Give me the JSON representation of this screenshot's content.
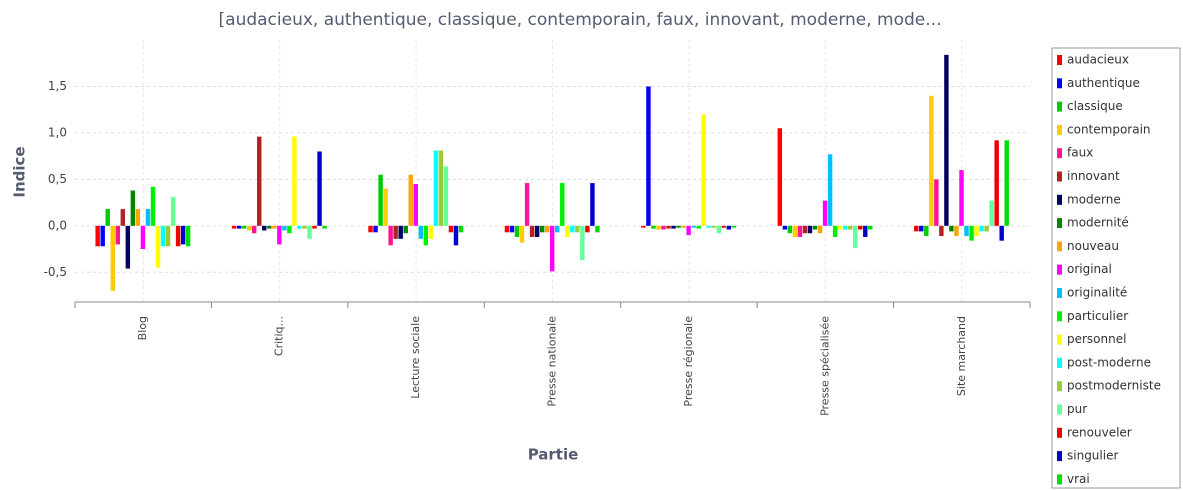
{
  "chart_data": {
    "type": "bar",
    "title": "[audacieux, authentique, classique, contemporain, faux, innovant, moderne, mode...",
    "x_label": "Partie",
    "y_label": "Indice",
    "categories": [
      "Blog",
      "Critiq...",
      "Lecture sociale",
      "Presse nationale",
      "Presse régionale",
      "Presse spécialisée",
      "Site marchand"
    ],
    "ylim": [
      -0.82,
      2.0
    ],
    "yticks": [
      {
        "value": -0.5,
        "label": "-0,5"
      },
      {
        "value": 0,
        "label": "0,0"
      },
      {
        "value": 0.5,
        "label": "0,5"
      },
      {
        "value": 1,
        "label": "1,0"
      },
      {
        "value": 1.5,
        "label": "1,5"
      }
    ],
    "grid": true,
    "legend": "right",
    "series": [
      {
        "name": "audacieux",
        "color": "#ff0000",
        "values": [
          -0.22,
          -0.03,
          -0.07,
          -0.07,
          -0.02,
          1.05,
          -0.06
        ]
      },
      {
        "name": "authentique",
        "color": "#0000ff",
        "values": [
          -0.22,
          -0.03,
          -0.07,
          -0.07,
          1.5,
          -0.04,
          -0.06
        ]
      },
      {
        "name": "classique",
        "color": "#00cc00",
        "values": [
          0.18,
          -0.03,
          0.55,
          -0.12,
          -0.03,
          -0.08,
          -0.11
        ]
      },
      {
        "name": "contemporain",
        "color": "#ffcc00",
        "values": [
          -0.7,
          -0.05,
          0.4,
          -0.18,
          -0.04,
          -0.12,
          1.4
        ]
      },
      {
        "name": "faux",
        "color": "#ff1493",
        "values": [
          -0.2,
          -0.08,
          -0.21,
          0.46,
          -0.04,
          -0.12,
          0.5
        ]
      },
      {
        "name": "innovant",
        "color": "#b22222",
        "values": [
          0.18,
          0.96,
          -0.14,
          -0.12,
          -0.03,
          -0.08,
          -0.11
        ]
      },
      {
        "name": "moderne",
        "color": "#000066",
        "values": [
          -0.46,
          -0.05,
          -0.14,
          -0.12,
          -0.03,
          -0.08,
          1.84
        ]
      },
      {
        "name": "modernité",
        "color": "#008800",
        "values": [
          0.38,
          -0.03,
          -0.08,
          -0.07,
          -0.02,
          -0.04,
          -0.06
        ]
      },
      {
        "name": "nouveau",
        "color": "#ffa500",
        "values": [
          0.18,
          -0.03,
          0.55,
          -0.07,
          -0.02,
          -0.08,
          -0.11
        ]
      },
      {
        "name": "original",
        "color": "#ff00ff",
        "values": [
          -0.25,
          -0.2,
          0.45,
          -0.49,
          -0.1,
          0.27,
          0.6
        ]
      },
      {
        "name": "originalité",
        "color": "#00bfff",
        "values": [
          0.18,
          -0.05,
          -0.14,
          -0.07,
          -0.02,
          0.77,
          -0.11
        ]
      },
      {
        "name": "particulier",
        "color": "#00ee00",
        "values": [
          0.42,
          -0.08,
          -0.21,
          0.46,
          -0.03,
          -0.12,
          -0.16
        ]
      },
      {
        "name": "personnel",
        "color": "#ffff00",
        "values": [
          -0.45,
          0.96,
          -0.14,
          -0.12,
          1.2,
          -0.04,
          -0.11
        ]
      },
      {
        "name": "post-moderne",
        "color": "#00ffff",
        "values": [
          -0.22,
          -0.03,
          0.81,
          -0.07,
          -0.02,
          -0.04,
          -0.06
        ]
      },
      {
        "name": "postmoderniste",
        "color": "#99cc33",
        "values": [
          -0.22,
          -0.03,
          0.81,
          -0.07,
          -0.02,
          -0.04,
          -0.06
        ]
      },
      {
        "name": "pur",
        "color": "#66ff99",
        "values": [
          0.31,
          -0.14,
          0.64,
          -0.37,
          -0.08,
          -0.24,
          0.27
        ]
      },
      {
        "name": "renouveler",
        "color": "#ee0000",
        "values": [
          -0.22,
          -0.03,
          -0.07,
          -0.07,
          -0.02,
          -0.04,
          0.92
        ]
      },
      {
        "name": "singulier",
        "color": "#0000cc",
        "values": [
          -0.2,
          0.8,
          -0.21,
          0.46,
          -0.04,
          -0.12,
          -0.16
        ]
      },
      {
        "name": "vrai",
        "color": "#00dd00",
        "values": [
          -0.22,
          -0.03,
          -0.07,
          -0.07,
          -0.02,
          -0.04,
          0.92
        ]
      }
    ]
  }
}
